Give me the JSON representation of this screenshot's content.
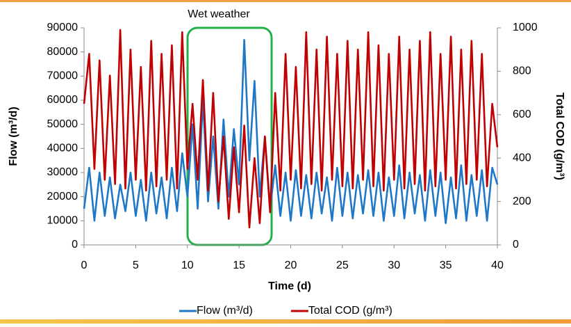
{
  "chart_data": {
    "type": "line",
    "annotation": "Wet weather",
    "x_label": "Time (d)",
    "y_label": "Flow (m³/d)",
    "y2_label": "Total COD (g/m³)",
    "x": [
      0,
      0.5,
      1,
      1.5,
      2,
      2.5,
      3,
      3.5,
      4,
      4.5,
      5,
      5.5,
      6,
      6.5,
      7,
      7.5,
      8,
      8.5,
      9,
      9.5,
      10,
      10.5,
      11,
      11.5,
      12,
      12.5,
      13,
      13.5,
      14,
      14.5,
      15,
      15.5,
      16,
      16.5,
      17,
      17.5,
      18,
      18.5,
      19,
      19.5,
      20,
      20.5,
      21,
      21.5,
      22,
      22.5,
      23,
      23.5,
      24,
      24.5,
      25,
      25.5,
      26,
      26.5,
      27,
      27.5,
      28,
      28.5,
      29,
      29.5,
      30,
      30.5,
      31,
      31.5,
      32,
      32.5,
      33,
      33.5,
      34,
      34.5,
      35,
      35.5,
      36,
      36.5,
      37,
      37.5,
      38,
      38.5,
      39,
      39.5,
      40
    ],
    "series": [
      {
        "name": "Flow (m³/d)",
        "color": "#1f77c8",
        "axis": "y",
        "values": [
          15000,
          32000,
          10000,
          30000,
          12000,
          28000,
          11000,
          25000,
          14000,
          30000,
          12000,
          27000,
          10000,
          30000,
          13000,
          28000,
          11000,
          32000,
          14000,
          38000,
          20000,
          50000,
          15000,
          60000,
          18000,
          45000,
          15000,
          52000,
          20000,
          48000,
          25000,
          85000,
          35000,
          68000,
          20000,
          45000,
          15000,
          33000,
          12000,
          30000,
          10000,
          31000,
          12000,
          29000,
          11000,
          30000,
          13000,
          28000,
          10000,
          32000,
          12000,
          30000,
          11000,
          29000,
          13000,
          31000,
          12000,
          30000,
          10000,
          28000,
          12000,
          33000,
          11000,
          30000,
          13000,
          29000,
          10000,
          31000,
          12000,
          30000,
          9000,
          28000,
          11000,
          33000,
          10000,
          29000,
          12000,
          31000,
          10000,
          32000,
          25000
        ]
      },
      {
        "name": "Total COD (g/m³)",
        "color": "#c00000",
        "axis": "y2",
        "values": [
          650,
          880,
          350,
          850,
          300,
          780,
          280,
          990,
          260,
          900,
          300,
          820,
          250,
          940,
          270,
          880,
          300,
          920,
          260,
          980,
          350,
          650,
          300,
          760,
          250,
          700,
          200,
          500,
          120,
          450,
          150,
          550,
          80,
          400,
          100,
          500,
          150,
          700,
          250,
          880,
          300,
          820,
          260,
          980,
          280,
          900,
          250,
          960,
          300,
          880,
          270,
          940,
          260,
          900,
          300,
          980,
          270,
          920,
          250,
          880,
          300,
          960,
          260,
          900,
          280,
          940,
          250,
          980,
          270,
          880,
          300,
          960,
          260,
          900,
          280,
          940,
          300,
          880,
          270,
          650,
          450
        ]
      }
    ],
    "xlim": [
      0,
      40
    ],
    "xticks": [
      0,
      5,
      10,
      15,
      20,
      25,
      30,
      35,
      40
    ],
    "ylim": [
      0,
      90000
    ],
    "yticks": [
      0,
      10000,
      20000,
      30000,
      40000,
      50000,
      60000,
      70000,
      80000,
      90000
    ],
    "y2lim": [
      0,
      1000
    ],
    "y2ticks": [
      0,
      200,
      400,
      600,
      800,
      1000
    ],
    "legend": "bottom"
  }
}
